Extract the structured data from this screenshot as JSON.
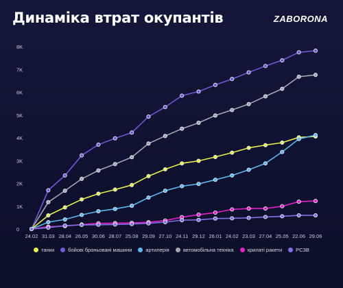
{
  "header": {
    "title": "Динаміка втрат окупантів",
    "logo": "ZABORONA"
  },
  "chart_data": {
    "type": "line",
    "title": "Динаміка втрат окупантів",
    "xlabel": "",
    "ylabel": "",
    "categories": [
      "24.02",
      "31.03",
      "28.04",
      "26.05",
      "30.06",
      "28.07",
      "25.08",
      "29.09",
      "27.10",
      "24.11",
      "29.12",
      "26.01",
      "24.02",
      "23.03",
      "27.04",
      "25.05",
      "22.06",
      "29.06"
    ],
    "y_ticks": [
      "0",
      "1K",
      "2K",
      "3K",
      "4K",
      "5K",
      "6K",
      "7K",
      "8K"
    ],
    "ylim": [
      0,
      8000
    ],
    "grid": false,
    "legend_position": "bottom",
    "series": [
      {
        "name": "танки",
        "color": "#e8f04a",
        "values": [
          0,
          600,
          950,
          1300,
          1550,
          1730,
          1930,
          2320,
          2620,
          2880,
          2990,
          3160,
          3350,
          3560,
          3680,
          3790,
          4020,
          4060
        ]
      },
      {
        "name": "бойові броньовані машини",
        "color": "#6a5ad8",
        "values": [
          0,
          1700,
          2350,
          3230,
          3700,
          3980,
          4230,
          4930,
          5350,
          5850,
          6030,
          6320,
          6580,
          6870,
          7150,
          7400,
          7750,
          7820
        ]
      },
      {
        "name": "артилерія",
        "color": "#5cb6f0",
        "values": [
          0,
          300,
          420,
          620,
          780,
          880,
          1020,
          1380,
          1680,
          1880,
          1980,
          2160,
          2350,
          2600,
          2880,
          3380,
          3950,
          4120
        ]
      },
      {
        "name": "автомобільна техніка",
        "color": "#a6a6b0",
        "values": [
          0,
          1180,
          1680,
          2200,
          2570,
          2850,
          3150,
          3750,
          4080,
          4400,
          4660,
          4980,
          5220,
          5480,
          5820,
          6150,
          6680,
          6760
        ]
      },
      {
        "name": "крилаті ракети",
        "color": "#e620c8",
        "values": [
          0,
          100,
          130,
          200,
          250,
          260,
          270,
          300,
          370,
          520,
          630,
          720,
          860,
          900,
          900,
          1000,
          1200,
          1230
        ]
      },
      {
        "name": "РСЗВ",
        "color": "#8270e8",
        "values": [
          0,
          60,
          150,
          180,
          190,
          200,
          220,
          250,
          300,
          390,
          400,
          460,
          470,
          490,
          530,
          560,
          600,
          600
        ]
      }
    ]
  }
}
